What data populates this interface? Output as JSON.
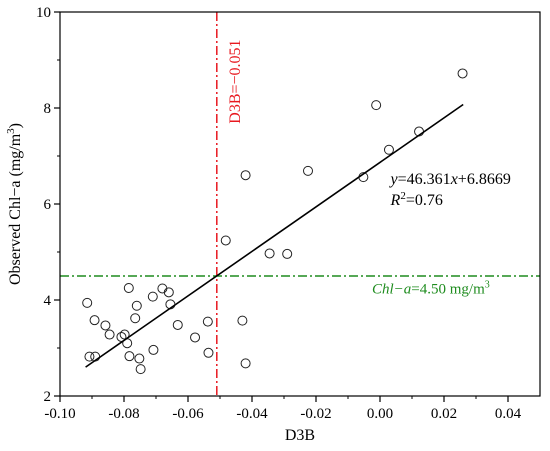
{
  "chart_data": {
    "type": "scatter",
    "xlabel": "D3B",
    "ylabel": "Observed Chl−a (mg/m³)",
    "ylabel_parts": {
      "main": "Observed Chl−a (mg/m",
      "sup": "3",
      "close": ")"
    },
    "xlim": [
      -0.1,
      0.05
    ],
    "ylim": [
      2,
      10
    ],
    "xticks": [
      -0.1,
      -0.08,
      -0.06,
      -0.04,
      -0.02,
      0.0,
      0.02,
      0.04
    ],
    "xtick_labels": [
      "-0.10",
      "-0.08",
      "-0.06",
      "-0.04",
      "-0.02",
      "0.00",
      "0.02",
      "0.04"
    ],
    "yticks": [
      2,
      4,
      6,
      8,
      10
    ],
    "ytick_labels": [
      "2",
      "4",
      "6",
      "8",
      "10"
    ],
    "points": [
      {
        "x": -0.0915,
        "y": 3.94
      },
      {
        "x": -0.0908,
        "y": 2.82
      },
      {
        "x": -0.0892,
        "y": 3.58
      },
      {
        "x": -0.089,
        "y": 2.82
      },
      {
        "x": -0.0858,
        "y": 3.47
      },
      {
        "x": -0.0845,
        "y": 3.28
      },
      {
        "x": -0.0808,
        "y": 3.23
      },
      {
        "x": -0.0798,
        "y": 3.28
      },
      {
        "x": -0.079,
        "y": 3.1
      },
      {
        "x": -0.0785,
        "y": 4.25
      },
      {
        "x": -0.0783,
        "y": 2.83
      },
      {
        "x": -0.0765,
        "y": 3.62
      },
      {
        "x": -0.076,
        "y": 3.88
      },
      {
        "x": -0.0752,
        "y": 2.78
      },
      {
        "x": -0.0748,
        "y": 2.56
      },
      {
        "x": -0.071,
        "y": 4.07
      },
      {
        "x": -0.0708,
        "y": 2.96
      },
      {
        "x": -0.068,
        "y": 4.24
      },
      {
        "x": -0.066,
        "y": 4.16
      },
      {
        "x": -0.0655,
        "y": 3.91
      },
      {
        "x": -0.0632,
        "y": 3.48
      },
      {
        "x": -0.0578,
        "y": 3.22
      },
      {
        "x": -0.0538,
        "y": 3.55
      },
      {
        "x": -0.0536,
        "y": 2.9
      },
      {
        "x": -0.0482,
        "y": 5.24
      },
      {
        "x": -0.043,
        "y": 3.57
      },
      {
        "x": -0.042,
        "y": 2.68
      },
      {
        "x": -0.042,
        "y": 6.6
      },
      {
        "x": -0.0345,
        "y": 4.97
      },
      {
        "x": -0.029,
        "y": 4.96
      },
      {
        "x": -0.0225,
        "y": 6.69
      },
      {
        "x": -0.0052,
        "y": 6.56
      },
      {
        "x": -0.0012,
        "y": 8.06
      },
      {
        "x": 0.0028,
        "y": 7.13
      },
      {
        "x": 0.0122,
        "y": 7.51
      },
      {
        "x": 0.0258,
        "y": 8.72
      }
    ],
    "fit": {
      "slope": 46.361,
      "intercept": 6.8669,
      "x_range": [
        -0.092,
        0.026
      ]
    },
    "equation": {
      "y": "y",
      "eq_mid": "=46.361",
      "x": "x",
      "tail": "+6.8669"
    },
    "r2": {
      "r": "R",
      "sup": "2",
      "tail": "=0.76"
    },
    "vline": {
      "x": -0.051,
      "color": "#e8181f",
      "label": "D3B=−0.051"
    },
    "hline": {
      "y": 4.5,
      "color": "#1e8c1e",
      "label_var": "Chl−a",
      "label_val": "=4.50 mg/m",
      "label_sup": "3"
    }
  }
}
